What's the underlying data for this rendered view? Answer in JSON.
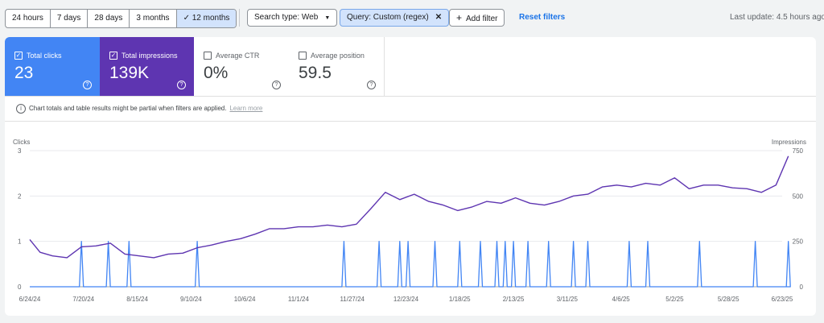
{
  "toolbar": {
    "ranges": [
      {
        "label": "24 hours",
        "active": false
      },
      {
        "label": "7 days",
        "active": false
      },
      {
        "label": "28 days",
        "active": false
      },
      {
        "label": "3 months",
        "active": false
      },
      {
        "label": "12 months",
        "active": true
      }
    ],
    "search_type": "Search type: Web",
    "query_filter": "Query: Custom (regex)",
    "add_filter": "Add filter",
    "reset_filters": "Reset filters",
    "last_update": "Last update: 4.5 hours ago"
  },
  "metrics": [
    {
      "label": "Total clicks",
      "value": "23",
      "checked": true
    },
    {
      "label": "Total impressions",
      "value": "139K",
      "checked": true
    },
    {
      "label": "Average CTR",
      "value": "0%",
      "checked": false
    },
    {
      "label": "Average position",
      "value": "59.5",
      "checked": false
    }
  ],
  "info": {
    "text": "Chart totals and table results might be partial when filters are applied.",
    "learn_more": "Learn more"
  },
  "colors": {
    "clicks": "#4285f4",
    "impressions": "#5e35b1",
    "accent": "#1a73e8"
  },
  "chart_data": {
    "type": "line",
    "left_axis_title": "Clicks",
    "right_axis_title": "Impressions",
    "left_ticks": [
      "0",
      "1",
      "2",
      "3"
    ],
    "right_ticks": [
      "0",
      "250",
      "500",
      "750"
    ],
    "ylim_left": [
      0,
      3
    ],
    "ylim_right": [
      0,
      750
    ],
    "x_tick_labels": [
      "6/24/24",
      "7/20/24",
      "8/15/24",
      "9/10/24",
      "10/6/24",
      "11/1/24",
      "11/27/24",
      "12/23/24",
      "1/18/25",
      "2/13/25",
      "3/11/25",
      "4/6/25",
      "5/2/25",
      "5/28/25",
      "6/23/25"
    ],
    "series": [
      {
        "name": "Clicks",
        "axis": "left",
        "x": [
          "7/19/24",
          "8/1/24",
          "8/11/24",
          "9/13/24",
          "11/23/24",
          "12/10/24",
          "12/20/24",
          "12/24/24",
          "1/6/25",
          "1/18/25",
          "1/28/25",
          "2/5/25",
          "2/9/25",
          "2/13/25",
          "2/20/25",
          "3/2/25",
          "3/14/25",
          "3/21/25",
          "4/10/25",
          "4/19/25",
          "5/14/25",
          "6/10/25",
          "6/26/25"
        ],
        "values": [
          1,
          1,
          1,
          1,
          1,
          1,
          1,
          1,
          1,
          1,
          1,
          1,
          1,
          1,
          1,
          1,
          1,
          1,
          1,
          1,
          1,
          1,
          1
        ]
      },
      {
        "name": "Impressions",
        "axis": "right",
        "x": [
          "6/24/24",
          "6/29/24",
          "7/5/24",
          "7/12/24",
          "7/19/24",
          "7/26/24",
          "8/2/24",
          "8/9/24",
          "8/16/24",
          "8/23/24",
          "8/30/24",
          "9/6/24",
          "9/13/24",
          "9/20/24",
          "9/27/24",
          "10/4/24",
          "10/11/24",
          "10/18/24",
          "10/25/24",
          "11/1/24",
          "11/8/24",
          "11/15/24",
          "11/22/24",
          "11/29/24",
          "12/6/24",
          "12/13/24",
          "12/20/24",
          "12/27/24",
          "1/3/25",
          "1/10/25",
          "1/17/25",
          "1/24/25",
          "1/31/25",
          "2/7/25",
          "2/14/25",
          "2/21/25",
          "2/28/25",
          "3/7/25",
          "3/14/25",
          "3/21/25",
          "3/28/25",
          "4/4/25",
          "4/11/25",
          "4/18/25",
          "4/25/25",
          "5/2/25",
          "5/9/25",
          "5/16/25",
          "5/23/25",
          "5/30/25",
          "6/6/25",
          "6/13/25",
          "6/20/25",
          "6/26/25"
        ],
        "values": [
          260,
          190,
          170,
          160,
          220,
          225,
          240,
          180,
          170,
          160,
          180,
          185,
          215,
          230,
          250,
          265,
          290,
          320,
          320,
          330,
          330,
          340,
          330,
          345,
          430,
          520,
          480,
          510,
          470,
          450,
          420,
          440,
          470,
          460,
          490,
          460,
          450,
          470,
          500,
          510,
          550,
          560,
          550,
          570,
          560,
          600,
          540,
          560,
          560,
          545,
          540,
          520,
          560,
          720
        ]
      }
    ]
  }
}
